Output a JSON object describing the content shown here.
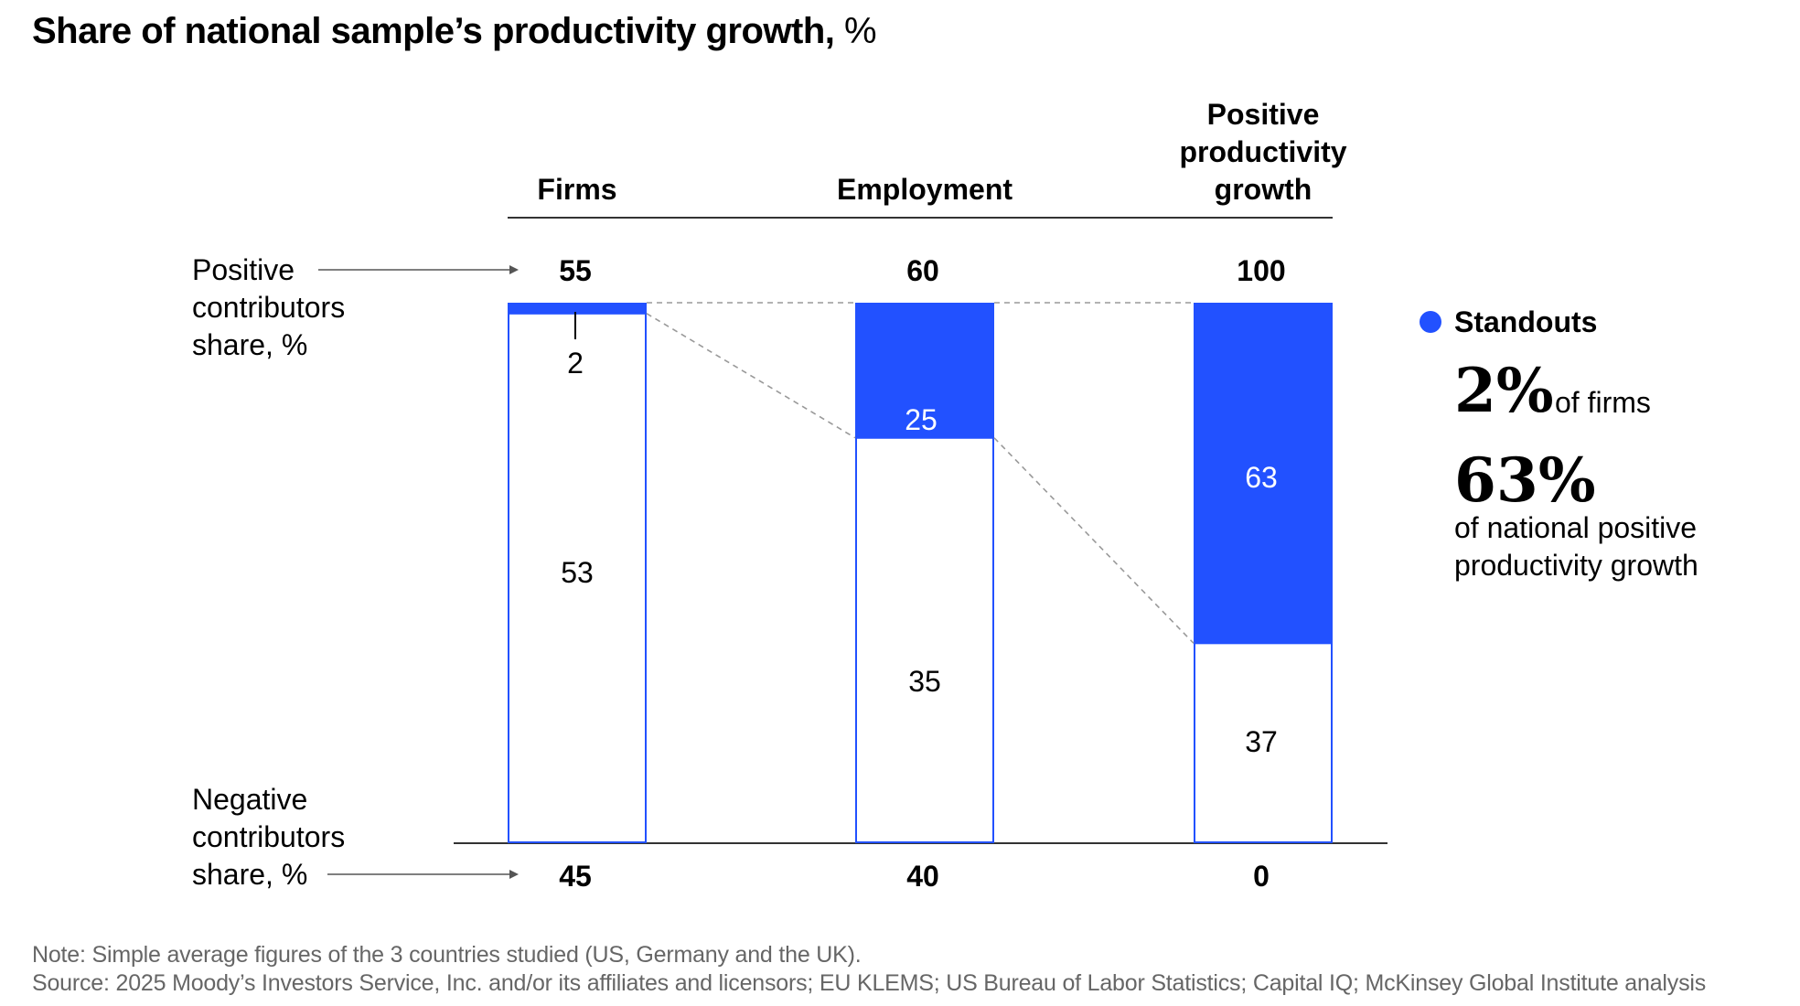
{
  "title": {
    "bold": "Share of national sample’s productivity growth,",
    "unit": "%"
  },
  "chart_data": {
    "type": "bar",
    "stacked": true,
    "categories": [
      "Firms",
      "Employment",
      "Positive productivity growth"
    ],
    "category_label_lines": [
      [
        "Firms"
      ],
      [
        "Employment"
      ],
      [
        "Positive",
        "productivity",
        "growth"
      ]
    ],
    "positive_totals": [
      55,
      60,
      100
    ],
    "negative_totals": [
      45,
      40,
      0
    ],
    "series": [
      {
        "name": "Standouts",
        "values": [
          2,
          25,
          63
        ]
      },
      {
        "name": "",
        "values": [
          53,
          35,
          37
        ]
      }
    ],
    "row_labels": {
      "positive": [
        "Positive",
        "contributors",
        "share, %"
      ],
      "negative": [
        "Negative",
        "contributors",
        "share, %"
      ]
    },
    "legend": {
      "label": "Standouts",
      "stat1_value": "2%",
      "stat1_text": "of firms",
      "stat2_value": "63%",
      "stat2_text_lines": [
        "of national positive",
        "productivity growth"
      ]
    },
    "colors": {
      "standouts": "#2251ff",
      "outline": "#2251ff",
      "axis": "#333333",
      "dashed": "#999999"
    }
  },
  "footer": {
    "note": "Note: Simple average figures of the 3 countries studied (US, Germany and the UK).",
    "source": "Source: 2025 Moody’s Investors Service, Inc. and/or its affiliates and licensors; EU KLEMS; US Bureau of Labor Statistics; Capital IQ; McKinsey Global Institute analysis"
  }
}
